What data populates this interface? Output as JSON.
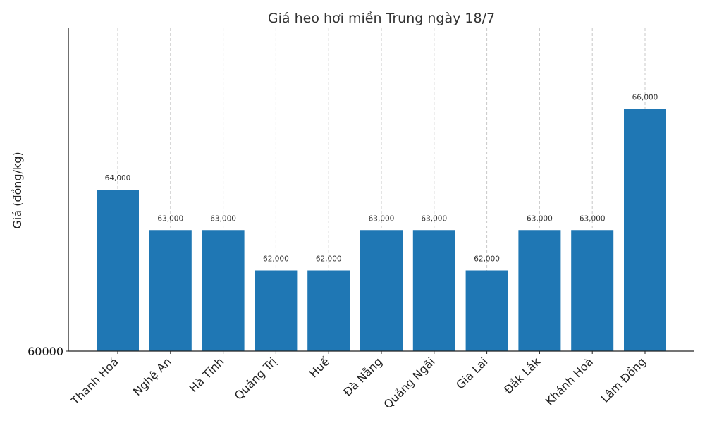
{
  "chart_data": {
    "type": "bar",
    "title": "Giá heo hơi miền Trung ngày 18/7",
    "xlabel": "",
    "ylabel": "Giá (đồng/kg)",
    "categories": [
      "Thanh Hoá",
      "Nghệ An",
      "Hà Tĩnh",
      "Quảng Trị",
      "Huế",
      "Đà Nẵng",
      "Quảng Ngãi",
      "Gia Lai",
      "Đắk Lắk",
      "Khánh Hoà",
      "Lâm Đồng"
    ],
    "values": [
      64000,
      63000,
      63000,
      62000,
      62000,
      63000,
      63000,
      62000,
      63000,
      63000,
      66000
    ],
    "data_labels": [
      "64,000",
      "63,000",
      "63,000",
      "62,000",
      "62,000",
      "63,000",
      "63,000",
      "62,000",
      "63,000",
      "63,000",
      "66,000"
    ],
    "ylim": [
      60000,
      68000
    ],
    "yticks": [
      "60000"
    ],
    "grid": "x-dashed",
    "colors": {
      "bar": "#1f77b4"
    }
  }
}
